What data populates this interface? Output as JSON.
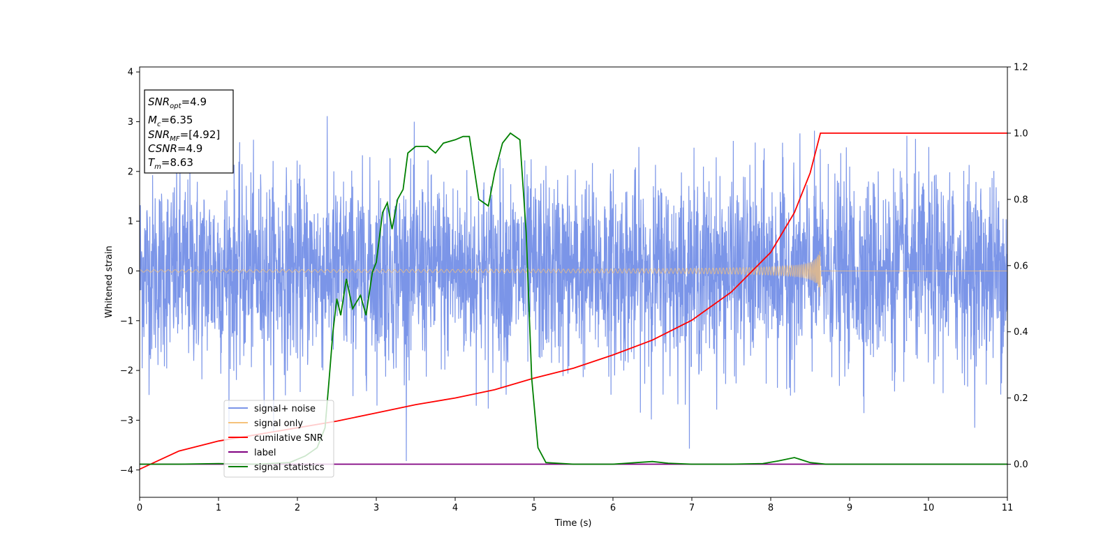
{
  "chart_data": {
    "type": "line",
    "xlabel": "Time (s)",
    "ylabel": "Whitened strain",
    "xlim": [
      0,
      11
    ],
    "ylim": [
      -4.55,
      4.1
    ],
    "y2lim": [
      -0.1,
      1.2
    ],
    "x_ticks": [
      "0",
      "1",
      "2",
      "3",
      "4",
      "5",
      "6",
      "7",
      "8",
      "9",
      "10",
      "11"
    ],
    "y_ticks": [
      "4",
      "3",
      "2",
      "1",
      "0",
      "−1",
      "−2",
      "−3",
      "−4"
    ],
    "y2_ticks": [
      "1.2",
      "1.0",
      "0.8",
      "0.6",
      "0.4",
      "0.2",
      "0.0"
    ],
    "grid": false,
    "legend_position": "lower-left",
    "annotation": {
      "snr_opt": {
        "main": "SNR",
        "sub": "opt",
        "value": "=4.9"
      },
      "mc": {
        "main": "M",
        "sub": "c",
        "value": "=6.35"
      },
      "snr_mf": {
        "main": "SNR",
        "sub": "MF",
        "value": "=[4.92]"
      },
      "csnr": {
        "main": "CSNR",
        "value": "=4.9"
      },
      "tm": {
        "main": "T",
        "sub": "m",
        "value": "=8.63"
      }
    },
    "series": [
      {
        "name": "signal+ noise",
        "color": "#7b95e8",
        "axis": "left",
        "description_values": {
          "noise_std": 0.95,
          "max": 3.66,
          "min": -4.15
        }
      },
      {
        "name": "signal only",
        "color": "#f5c27a",
        "axis": "left",
        "chirp": {
          "start": 0,
          "merger": 8.63,
          "end": 11,
          "peak_amplitude": 0.52
        }
      },
      {
        "name": "cumilative SNR",
        "color": "#ff0000",
        "axis": "right",
        "points": [
          [
            0,
            -0.015
          ],
          [
            0.5,
            0.04
          ],
          [
            1,
            0.07
          ],
          [
            1.5,
            0.09
          ],
          [
            2,
            0.11
          ],
          [
            2.5,
            0.13
          ],
          [
            3,
            0.155
          ],
          [
            3.5,
            0.18
          ],
          [
            4,
            0.2
          ],
          [
            4.5,
            0.225
          ],
          [
            5,
            0.26
          ],
          [
            5.5,
            0.29
          ],
          [
            6,
            0.33
          ],
          [
            6.5,
            0.375
          ],
          [
            7,
            0.435
          ],
          [
            7.5,
            0.52
          ],
          [
            8,
            0.64
          ],
          [
            8.3,
            0.76
          ],
          [
            8.5,
            0.88
          ],
          [
            8.63,
            1.0
          ],
          [
            11,
            1.0
          ]
        ]
      },
      {
        "name": "label",
        "color": "#800080",
        "axis": "right",
        "points": [
          [
            0,
            0.0
          ],
          [
            11,
            0.0
          ]
        ]
      },
      {
        "name": "signal statistics",
        "color": "#008000",
        "axis": "right",
        "points": [
          [
            0,
            0.0
          ],
          [
            0.5,
            0.0
          ],
          [
            1.0,
            0.002
          ],
          [
            1.5,
            0.0
          ],
          [
            1.9,
            0.005
          ],
          [
            2.1,
            0.025
          ],
          [
            2.25,
            0.05
          ],
          [
            2.35,
            0.11
          ],
          [
            2.4,
            0.25
          ],
          [
            2.45,
            0.4
          ],
          [
            2.5,
            0.5
          ],
          [
            2.55,
            0.45
          ],
          [
            2.62,
            0.56
          ],
          [
            2.7,
            0.47
          ],
          [
            2.8,
            0.51
          ],
          [
            2.87,
            0.45
          ],
          [
            2.95,
            0.58
          ],
          [
            3.0,
            0.61
          ],
          [
            3.08,
            0.76
          ],
          [
            3.14,
            0.79
          ],
          [
            3.2,
            0.71
          ],
          [
            3.27,
            0.8
          ],
          [
            3.34,
            0.83
          ],
          [
            3.4,
            0.94
          ],
          [
            3.5,
            0.96
          ],
          [
            3.65,
            0.96
          ],
          [
            3.75,
            0.94
          ],
          [
            3.85,
            0.97
          ],
          [
            4.0,
            0.98
          ],
          [
            4.1,
            0.99
          ],
          [
            4.18,
            0.99
          ],
          [
            4.3,
            0.8
          ],
          [
            4.42,
            0.78
          ],
          [
            4.5,
            0.88
          ],
          [
            4.6,
            0.97
          ],
          [
            4.7,
            1.0
          ],
          [
            4.82,
            0.98
          ],
          [
            4.9,
            0.7
          ],
          [
            4.97,
            0.26
          ],
          [
            5.05,
            0.05
          ],
          [
            5.15,
            0.005
          ],
          [
            5.5,
            0.0
          ],
          [
            6.0,
            0.0
          ],
          [
            6.3,
            0.005
          ],
          [
            6.5,
            0.008
          ],
          [
            6.7,
            0.003
          ],
          [
            7.0,
            0.0
          ],
          [
            7.5,
            0.0
          ],
          [
            7.9,
            0.002
          ],
          [
            8.1,
            0.01
          ],
          [
            8.3,
            0.02
          ],
          [
            8.5,
            0.005
          ],
          [
            8.7,
            0.0
          ],
          [
            11,
            0.0
          ]
        ]
      }
    ]
  }
}
